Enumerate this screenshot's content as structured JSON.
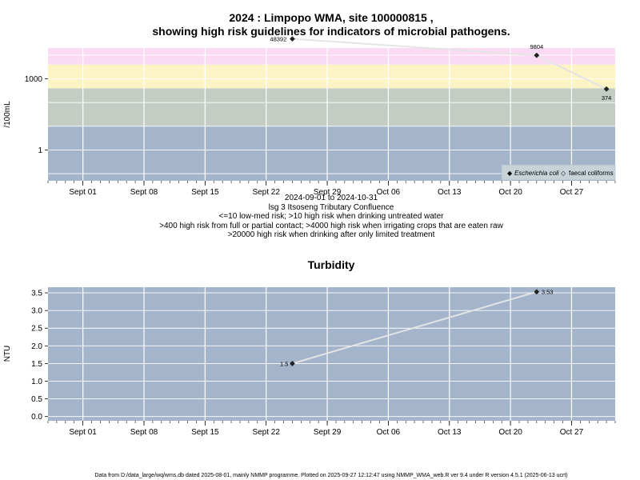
{
  "chart_data": [
    {
      "type": "line",
      "title_line1": "2024 : Limpopo WMA, site 100000815 ,",
      "title_line2": "showing high risk guidelines for indicators of microbial pathogens.",
      "ylabel": "/100mL",
      "y_scale": "log10",
      "ylim": [
        0.05,
        20000
      ],
      "yticks": [
        1,
        1000
      ],
      "yticklabels": [
        "1",
        "1000"
      ],
      "x_range": [
        "2024-08-28",
        "2024-11-01"
      ],
      "xticks": [
        "2024-09-01",
        "2024-09-08",
        "2024-09-15",
        "2024-09-22",
        "2024-09-29",
        "2024-10-06",
        "2024-10-13",
        "2024-10-20",
        "2024-10-27"
      ],
      "xticklabels": [
        "Sept 01",
        "Sept 08",
        "Sept 15",
        "Sept 22",
        "Sept 29",
        "Oct 06",
        "Oct 13",
        "Oct 20",
        "Oct 27"
      ],
      "grid": true,
      "bands": [
        {
          "from": 0.05,
          "to": 10,
          "color": "#a3b4cb"
        },
        {
          "from": 10,
          "to": 400,
          "color": "#c3cdc3"
        },
        {
          "from": 400,
          "to": 4000,
          "color": "#fcf4c4"
        },
        {
          "from": 4000,
          "to": 20000,
          "color": "#fbdbf4"
        },
        {
          "from": 20000,
          "to": 1000000,
          "color": "#fcb4c3"
        }
      ],
      "series": [
        {
          "name": "Escherichia coli",
          "color": "#e4e4e4",
          "points": [
            {
              "x": "2024-09-25",
              "y": 48392,
              "label": "48392"
            },
            {
              "x": "2024-10-23",
              "y": 9804,
              "label": "9804"
            },
            {
              "x": "2024-10-31",
              "y": 374,
              "label": "374"
            }
          ]
        }
      ],
      "legend": {
        "position": "bottom-right",
        "entries": [
          {
            "marker": "◆",
            "label": "Escherichia coli",
            "italic": true
          },
          {
            "marker": "◇",
            "label": "faecal coliforms",
            "italic": false
          }
        ]
      },
      "subtext": [
        "2024-09-01 to 2024-10-31",
        "lsg 3 Itsoseng Tributary Confluence",
        "<=10 low-med risk; >10 high risk when drinking untreated water",
        ">400 high risk from full or partial contact; >4000 high risk when irrigating crops that are eaten raw",
        ">20000 high risk when drinking after only limited treatment"
      ]
    },
    {
      "type": "line",
      "title": "Turbidity",
      "ylabel": "NTU",
      "ylim": [
        -0.12,
        3.66
      ],
      "yticks": [
        0,
        0.5,
        1,
        1.5,
        2,
        2.5,
        3,
        3.5
      ],
      "yticklabels": [
        "0.0",
        "0.5",
        "1.0",
        "1.5",
        "2.0",
        "2.5",
        "3.0",
        "3.5"
      ],
      "x_range": [
        "2024-08-28",
        "2024-11-01"
      ],
      "xticks": [
        "2024-09-01",
        "2024-09-08",
        "2024-09-15",
        "2024-09-22",
        "2024-09-29",
        "2024-10-06",
        "2024-10-13",
        "2024-10-20",
        "2024-10-27"
      ],
      "xticklabels": [
        "Sept 01",
        "Sept 08",
        "Sept 15",
        "Sept 22",
        "Sept 29",
        "Oct 06",
        "Oct 13",
        "Oct 20",
        "Oct 27"
      ],
      "grid": true,
      "background": "#a3b4cb",
      "series": [
        {
          "name": "",
          "color": "#e4e4e4",
          "points": [
            {
              "x": "2024-09-25",
              "y": 1.5,
              "label": "1.5"
            },
            {
              "x": "2024-10-23",
              "y": 3.53,
              "label": "3.53"
            }
          ]
        }
      ]
    }
  ],
  "footer": "Data from D:/data_large/wq/wms.db dated 2025-08-01, mainly NMMP programme. Plotted on 2025-09-27 12:12:47 using NMMP_WMA_web.R ver 9.4 under R version 4.5.1 (2025-06-13 ucrt)"
}
